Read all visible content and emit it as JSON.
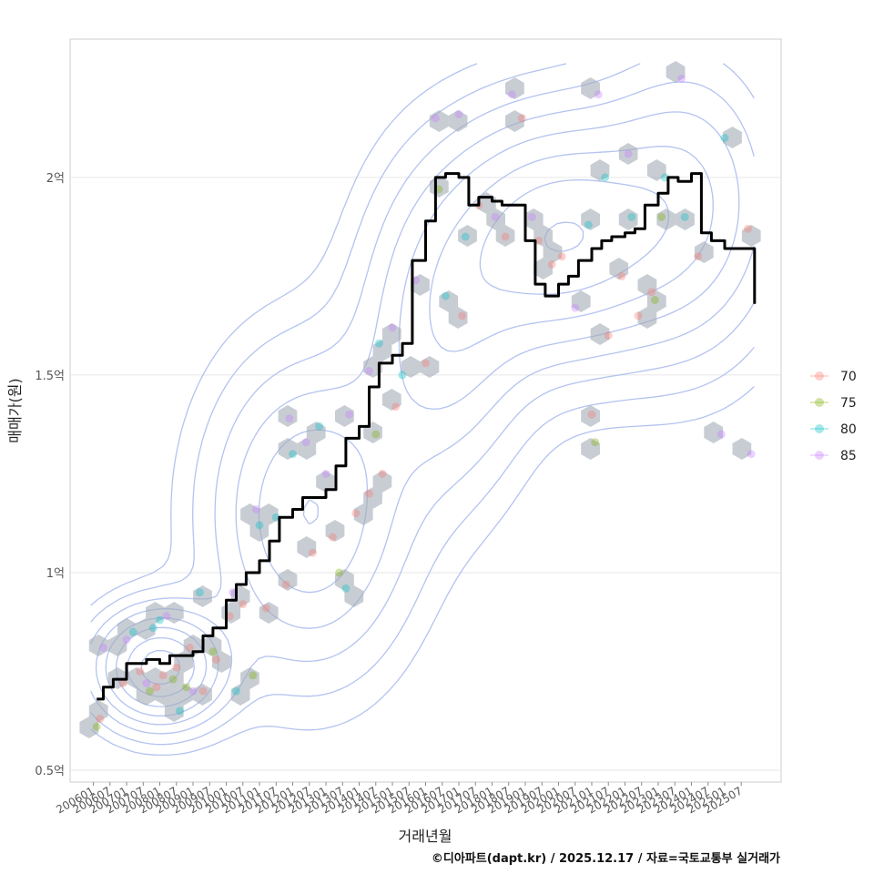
{
  "chart_data": {
    "type": "scatter",
    "xlabel": "거래년월",
    "ylabel": "매매가(원)",
    "caption": "©디아파트(dapt.kr) / 2025.12.17 / 자료=국토교통부 실거래가",
    "y_ticks": [
      {
        "value": 0.5,
        "label": "0.5억"
      },
      {
        "value": 1.0,
        "label": "1억"
      },
      {
        "value": 1.5,
        "label": "1.5억"
      },
      {
        "value": 2.0,
        "label": "2억"
      }
    ],
    "ylim": [
      0.47,
      2.35
    ],
    "xlim": [
      2005.3,
      2026.7
    ],
    "x_ticks": [
      "200601",
      "200607",
      "200701",
      "200707",
      "200801",
      "200807",
      "200901",
      "200907",
      "201001",
      "201007",
      "201101",
      "201107",
      "201201",
      "201207",
      "201301",
      "201307",
      "201401",
      "201407",
      "201501",
      "201507",
      "201601",
      "201607",
      "201701",
      "201707",
      "201801",
      "201807",
      "201901",
      "201907",
      "202001",
      "202007",
      "202101",
      "202107",
      "202201",
      "202207",
      "202301",
      "202307",
      "202401",
      "202407",
      "202501",
      "202507"
    ],
    "legend": [
      {
        "label": "70",
        "color": "#F8766D"
      },
      {
        "label": "75",
        "color": "#7CAE00"
      },
      {
        "label": "80",
        "color": "#00BFC4"
      },
      {
        "label": "85",
        "color": "#C77CFF"
      }
    ],
    "trend_line": {
      "name": "moving median",
      "color": "#000000",
      "x": [
        2006.1,
        2006.3,
        2006.6,
        2007.0,
        2007.3,
        2007.6,
        2008.0,
        2008.3,
        2008.6,
        2009.0,
        2009.3,
        2009.6,
        2010.0,
        2010.3,
        2010.6,
        2011.0,
        2011.3,
        2011.6,
        2012.0,
        2012.3,
        2012.6,
        2013.0,
        2013.3,
        2013.6,
        2014.0,
        2014.3,
        2014.6,
        2015.0,
        2015.3,
        2015.6,
        2016.0,
        2016.3,
        2016.6,
        2017.0,
        2017.3,
        2017.6,
        2018.0,
        2018.3,
        2018.6,
        2019.0,
        2019.3,
        2019.6,
        2020.0,
        2020.3,
        2020.6,
        2021.0,
        2021.3,
        2021.6,
        2022.0,
        2022.3,
        2022.6,
        2023.0,
        2023.3,
        2023.6,
        2024.0,
        2024.3,
        2024.6,
        2025.0,
        2025.3,
        2025.6,
        2025.9
      ],
      "values": [
        0.68,
        0.71,
        0.73,
        0.77,
        0.77,
        0.78,
        0.77,
        0.79,
        0.79,
        0.8,
        0.84,
        0.86,
        0.93,
        0.97,
        1.0,
        1.03,
        1.08,
        1.14,
        1.16,
        1.19,
        1.19,
        1.21,
        1.27,
        1.34,
        1.37,
        1.47,
        1.53,
        1.55,
        1.58,
        1.79,
        1.89,
        2.0,
        2.01,
        2.0,
        1.93,
        1.95,
        1.94,
        1.93,
        1.93,
        1.84,
        1.73,
        1.7,
        1.73,
        1.75,
        1.79,
        1.82,
        1.84,
        1.85,
        1.86,
        1.87,
        1.93,
        1.96,
        2.0,
        1.99,
        2.01,
        1.86,
        1.84,
        1.82,
        1.82,
        1.82,
        1.68
      ]
    },
    "series": [
      {
        "name": "70",
        "x": [
          2006.2,
          2006.9,
          2007.4,
          2007.9,
          2008.1,
          2008.5,
          2008.9,
          2009.3,
          2009.7,
          2010.1,
          2010.5,
          2011.2,
          2011.8,
          2012.6,
          2013.2,
          2013.9,
          2014.3,
          2014.7,
          2015.1,
          2016.0,
          2017.1,
          2017.6,
          2018.4,
          2018.9,
          2019.4,
          2019.8,
          2020.1,
          2021.0,
          2021.5,
          2021.9,
          2022.4,
          2022.8,
          2024.2,
          2025.7
        ],
        "values": [
          0.63,
          0.72,
          0.75,
          0.71,
          0.74,
          0.76,
          0.81,
          0.7,
          0.78,
          0.89,
          0.92,
          0.91,
          0.97,
          1.05,
          1.09,
          1.15,
          1.2,
          1.25,
          1.42,
          1.53,
          1.65,
          1.93,
          1.85,
          2.15,
          1.84,
          1.78,
          1.8,
          1.4,
          1.6,
          1.75,
          1.65,
          1.71,
          1.8,
          1.87
        ]
      },
      {
        "name": "75",
        "x": [
          2006.1,
          2007.7,
          2008.4,
          2008.8,
          2009.6,
          2010.8,
          2013.4,
          2014.5,
          2016.4,
          2021.1,
          2022.9,
          2023.1
        ],
        "values": [
          0.61,
          0.7,
          0.73,
          0.71,
          0.8,
          0.74,
          1.0,
          1.35,
          1.97,
          1.33,
          1.69,
          1.9
        ]
      },
      {
        "name": "80",
        "x": [
          2007.2,
          2007.8,
          2008.0,
          2008.6,
          2009.2,
          2010.3,
          2011.0,
          2011.5,
          2012.0,
          2012.8,
          2013.6,
          2014.6,
          2015.3,
          2016.6,
          2017.2,
          2020.9,
          2021.4,
          2022.2,
          2023.2,
          2023.8,
          2025.0
        ],
        "values": [
          0.85,
          0.86,
          0.88,
          0.65,
          0.95,
          0.7,
          1.12,
          1.14,
          1.3,
          1.37,
          0.96,
          1.58,
          1.5,
          1.7,
          1.85,
          1.88,
          2.0,
          1.9,
          2.0,
          1.9,
          2.1
        ]
      },
      {
        "name": "85",
        "x": [
          2006.3,
          2007.0,
          2007.6,
          2008.2,
          2009.0,
          2010.2,
          2010.9,
          2011.9,
          2012.4,
          2013.0,
          2013.7,
          2014.3,
          2015.0,
          2015.7,
          2016.3,
          2017.0,
          2018.1,
          2018.6,
          2019.2,
          2020.5,
          2021.2,
          2022.1,
          2023.7,
          2024.9,
          2025.8
        ],
        "values": [
          0.81,
          0.83,
          0.72,
          0.89,
          0.7,
          0.95,
          1.16,
          1.39,
          1.33,
          1.25,
          1.4,
          1.51,
          1.62,
          1.74,
          2.15,
          2.16,
          1.9,
          2.21,
          1.9,
          1.67,
          2.21,
          2.06,
          2.25,
          1.35,
          1.3
        ]
      }
    ]
  }
}
